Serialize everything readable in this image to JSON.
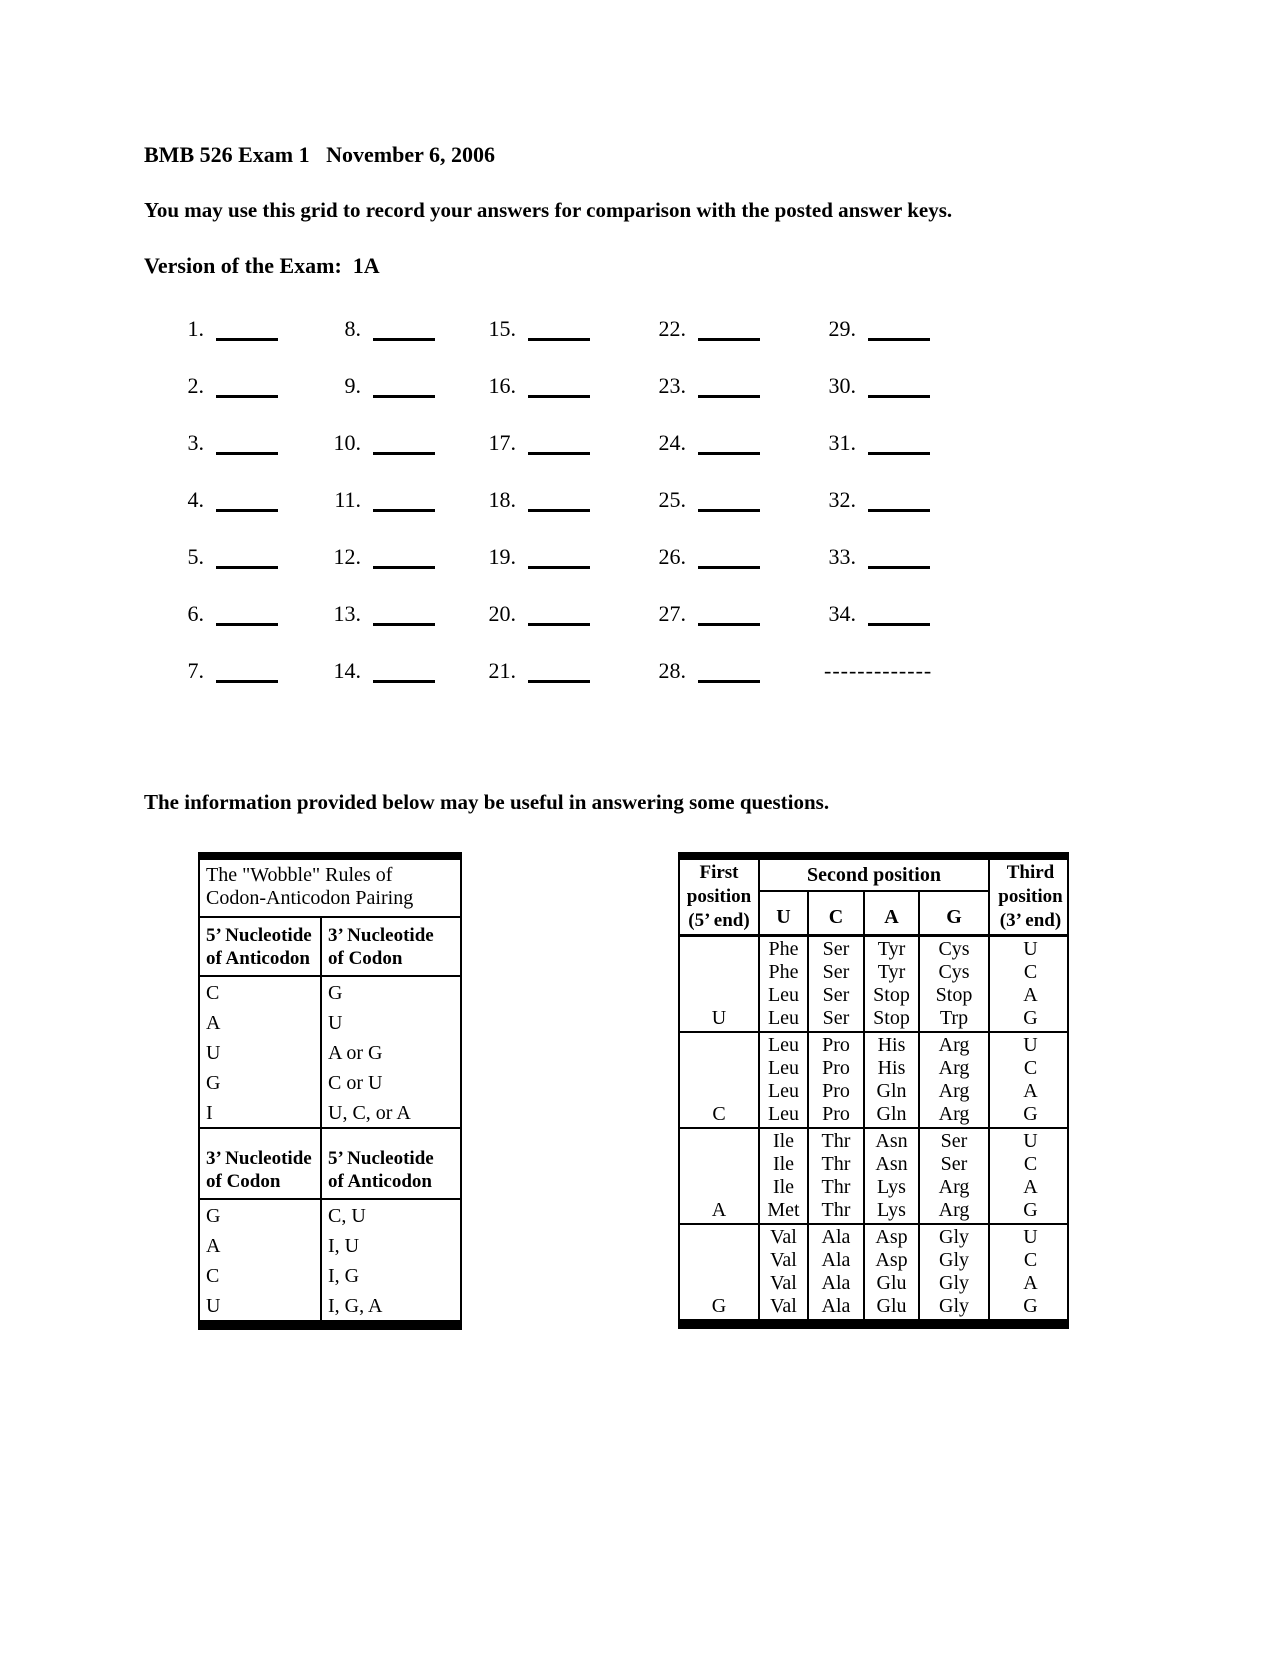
{
  "page": {
    "title": "BMB 526 Exam 1   November 6, 2006",
    "instructions": "You may use this grid to record your answers for comparison with the posted answer keys.",
    "version_line": "Version of the Exam:  1A",
    "info_note": "The information provided below may be useful in answering some questions."
  },
  "answer_grid": {
    "start": 1,
    "end": 34,
    "rows_per_column": 7,
    "columns": 5,
    "dashed_placeholder": "-------------"
  },
  "wobble_table": {
    "title_lines": [
      "The \"Wobble\" Rules of",
      "Codon-Anticodon Pairing"
    ],
    "sections": [
      {
        "headers": [
          [
            "5’ Nucleotide",
            "of Anticodon"
          ],
          [
            "3’ Nucleotide",
            "of Codon"
          ]
        ],
        "rows": [
          [
            "C",
            "G"
          ],
          [
            "A",
            "U"
          ],
          [
            "U",
            "A or G"
          ],
          [
            "G",
            "C or U"
          ],
          [
            "I",
            "U, C, or A"
          ]
        ]
      },
      {
        "headers": [
          [
            "3’ Nucleotide",
            "of Codon"
          ],
          [
            "5’ Nucleotide",
            "of Anticodon"
          ]
        ],
        "rows": [
          [
            "G",
            "C, U"
          ],
          [
            "A",
            "I, U"
          ],
          [
            "C",
            "I, G"
          ],
          [
            "U",
            "I, G, A"
          ]
        ]
      }
    ]
  },
  "genetic_code_table": {
    "first_header_lines": [
      "First",
      "position",
      "(5’ end)"
    ],
    "second_header": "Second position",
    "second_columns": [
      "U",
      "C",
      "A",
      "G"
    ],
    "third_header_lines": [
      "Third",
      "position",
      "(3’ end)"
    ],
    "blocks": [
      {
        "first": "U",
        "columns": [
          [
            "Phe",
            "Phe",
            "Leu",
            "Leu"
          ],
          [
            "Ser",
            "Ser",
            "Ser",
            "Ser"
          ],
          [
            "Tyr",
            "Tyr",
            "Stop",
            "Stop"
          ],
          [
            "Cys",
            "Cys",
            "Stop",
            "Trp"
          ]
        ],
        "third": [
          "U",
          "C",
          "A",
          "G"
        ]
      },
      {
        "first": "C",
        "columns": [
          [
            "Leu",
            "Leu",
            "Leu",
            "Leu"
          ],
          [
            "Pro",
            "Pro",
            "Pro",
            "Pro"
          ],
          [
            "His",
            "His",
            "Gln",
            "Gln"
          ],
          [
            "Arg",
            "Arg",
            "Arg",
            "Arg"
          ]
        ],
        "third": [
          "U",
          "C",
          "A",
          "G"
        ]
      },
      {
        "first": "A",
        "columns": [
          [
            "Ile",
            "Ile",
            "Ile",
            "Met"
          ],
          [
            "Thr",
            "Thr",
            "Thr",
            "Thr"
          ],
          [
            "Asn",
            "Asn",
            "Lys",
            "Lys"
          ],
          [
            "Ser",
            "Ser",
            "Arg",
            "Arg"
          ]
        ],
        "third": [
          "U",
          "C",
          "A",
          "G"
        ]
      },
      {
        "first": "G",
        "columns": [
          [
            "Val",
            "Val",
            "Val",
            "Val"
          ],
          [
            "Ala",
            "Ala",
            "Ala",
            "Ala"
          ],
          [
            "Asp",
            "Asp",
            "Glu",
            "Glu"
          ],
          [
            "Gly",
            "Gly",
            "Gly",
            "Gly"
          ]
        ],
        "third": [
          "U",
          "C",
          "A",
          "G"
        ]
      }
    ]
  }
}
